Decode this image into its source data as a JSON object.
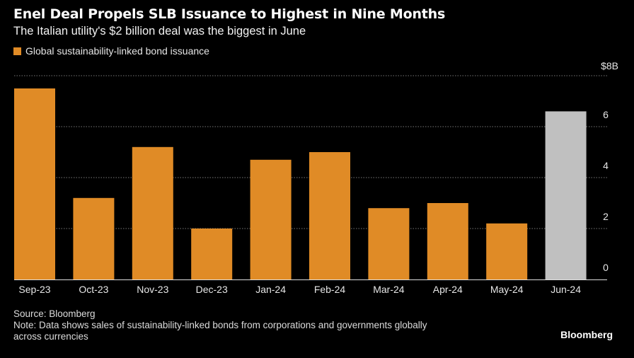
{
  "chart_data": {
    "type": "bar",
    "title": "Enel Deal Propels SLB Issuance to Highest in Nine Months",
    "subtitle": "The Italian utility's $2 billion deal was the biggest in June",
    "legend": [
      {
        "name": "Global sustainability-linked bond issuance",
        "color": "#e08b26"
      }
    ],
    "legend_placement": "top-left",
    "categories": [
      "Sep-23",
      "Oct-23",
      "Nov-23",
      "Dec-23",
      "Jan-24",
      "Feb-24",
      "Mar-24",
      "Apr-24",
      "May-24",
      "Jun-24"
    ],
    "series": [
      {
        "name": "Global sustainability-linked bond issuance",
        "values": [
          7.5,
          3.2,
          5.2,
          2.0,
          4.7,
          5.0,
          2.8,
          3.0,
          2.2,
          6.6
        ]
      }
    ],
    "bar_colors": [
      "#e08b26",
      "#e08b26",
      "#e08b26",
      "#e08b26",
      "#e08b26",
      "#e08b26",
      "#e08b26",
      "#e08b26",
      "#e08b26",
      "#c0c0c0"
    ],
    "ylim": [
      0,
      8
    ],
    "yticks": [
      0,
      2,
      4,
      6,
      8
    ],
    "ytick_labels": [
      "0",
      "2",
      "4",
      "6",
      "$8B"
    ],
    "yaxis_side": "right",
    "grid": true,
    "xlabel": "",
    "ylabel": ""
  },
  "footer": {
    "source": "Source: Bloomberg",
    "note_line1": "Note: Data shows sales of sustainability-linked bonds from corporations and governments globally",
    "note_line2": "across currencies",
    "brand": "Bloomberg"
  }
}
